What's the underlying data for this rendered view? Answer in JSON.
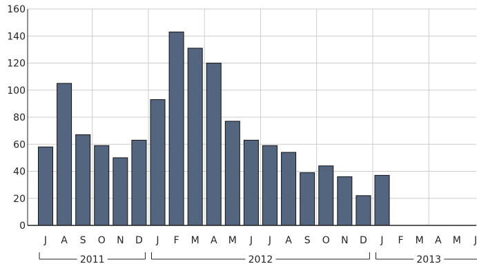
{
  "chart_data": {
    "type": "bar",
    "title": "",
    "xlabel": "",
    "ylabel": "",
    "ylim": [
      0,
      160
    ],
    "yticks": [
      0,
      20,
      40,
      60,
      80,
      100,
      120,
      140,
      160
    ],
    "grid": true,
    "categories": [
      "J",
      "A",
      "S",
      "O",
      "N",
      "D",
      "J",
      "F",
      "M",
      "A",
      "M",
      "J",
      "J",
      "A",
      "S",
      "O",
      "N",
      "D",
      "J",
      "F",
      "M",
      "A",
      "M",
      "J"
    ],
    "values": [
      58,
      105,
      67,
      59,
      50,
      63,
      93,
      143,
      131,
      120,
      77,
      63,
      59,
      54,
      39,
      44,
      36,
      22,
      37,
      null,
      null,
      null,
      null,
      null
    ],
    "year_groups": [
      {
        "label": "2011",
        "start": 0,
        "end": 5
      },
      {
        "label": "2012",
        "start": 6,
        "end": 17
      },
      {
        "label": "2013",
        "start": 18,
        "end": 23
      }
    ],
    "colors": {
      "bar": "#54657f",
      "bar_stroke": "#111111",
      "grid": "#cccccc",
      "axis": "#222222"
    }
  }
}
